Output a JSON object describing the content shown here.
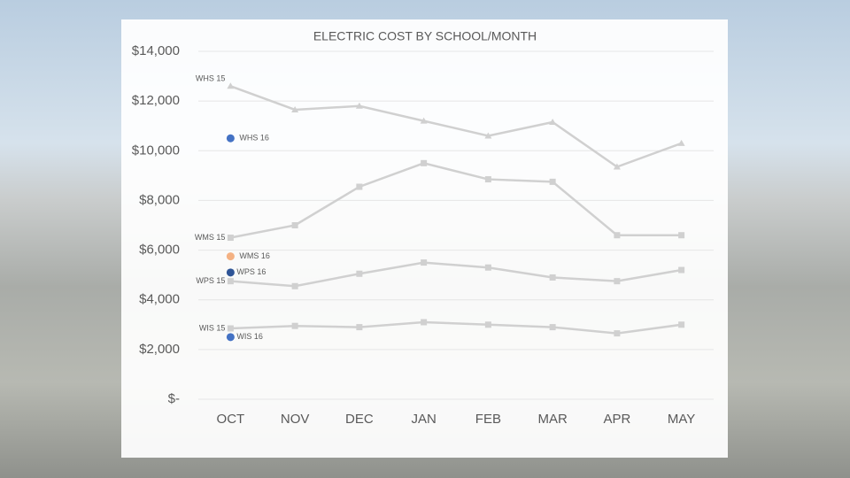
{
  "chart_data": {
    "type": "line",
    "title": "ELECTRIC COST BY SCHOOL/MONTH",
    "categories": [
      "OCT",
      "NOV",
      "DEC",
      "JAN",
      "FEB",
      "MAR",
      "APR",
      "MAY"
    ],
    "series": [
      {
        "name": "WHS 15",
        "color": "#d0d0d0",
        "marker": "triangle",
        "values": [
          12600,
          11650,
          11800,
          11200,
          10600,
          11150,
          9350,
          10300
        ]
      },
      {
        "name": "WHS 16",
        "color": "#4472c4",
        "marker": "circle",
        "values": [
          10500,
          null,
          null,
          null,
          null,
          null,
          null,
          null
        ]
      },
      {
        "name": "WMS 15",
        "color": "#d0d0d0",
        "marker": "square",
        "values": [
          6500,
          7000,
          8550,
          9500,
          8850,
          8750,
          6600,
          6600
        ]
      },
      {
        "name": "WMS 16",
        "color": "#f4b183",
        "marker": "circle",
        "values": [
          5750,
          null,
          null,
          null,
          null,
          null,
          null,
          null
        ]
      },
      {
        "name": "WPS 16",
        "color": "#2f5597",
        "marker": "circle",
        "values": [
          5100,
          null,
          null,
          null,
          null,
          null,
          null,
          null
        ]
      },
      {
        "name": "WPS 15",
        "color": "#d0d0d0",
        "marker": "square",
        "values": [
          4750,
          4550,
          5050,
          5500,
          5300,
          4900,
          4750,
          5200
        ]
      },
      {
        "name": "WIS 15",
        "color": "#d0d0d0",
        "marker": "square",
        "values": [
          2850,
          2950,
          2900,
          3100,
          3000,
          2900,
          2650,
          3000
        ]
      },
      {
        "name": "WIS 16",
        "color": "#4472c4",
        "marker": "circle",
        "values": [
          2500,
          null,
          null,
          null,
          null,
          null,
          null,
          null
        ]
      }
    ],
    "ylim": [
      0,
      14000
    ],
    "yticks": [
      {
        "value": 0,
        "label": "$-"
      },
      {
        "value": 2000,
        "label": "$2,000"
      },
      {
        "value": 4000,
        "label": "$4,000"
      },
      {
        "value": 6000,
        "label": "$6,000"
      },
      {
        "value": 8000,
        "label": "$8,000"
      },
      {
        "value": 10000,
        "label": "$10,000"
      },
      {
        "value": 12000,
        "label": "$12,000"
      },
      {
        "value": 14000,
        "label": "$14,000"
      }
    ],
    "grid": true
  }
}
